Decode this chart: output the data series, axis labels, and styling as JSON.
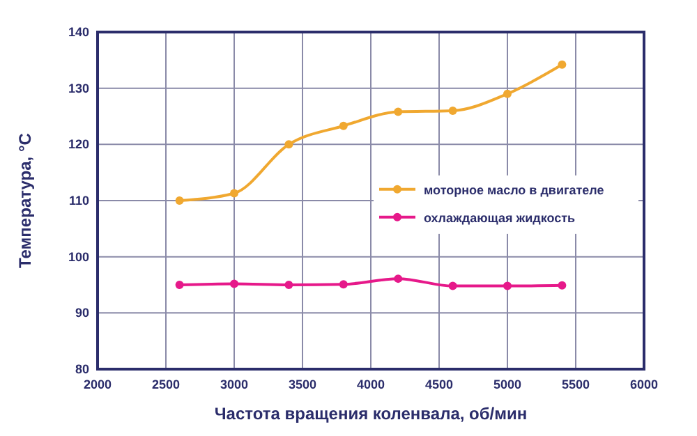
{
  "chart_data": {
    "type": "line",
    "xlabel": "Частота вращения коленвала, об/мин",
    "ylabel": "Температура, °C",
    "x": [
      2600,
      3000,
      3400,
      3800,
      4200,
      4600,
      5000,
      5400
    ],
    "series": [
      {
        "name": "моторное масло в двигателе",
        "color": "#f0a830",
        "values": [
          110,
          111.3,
          120,
          123.3,
          125.8,
          126,
          129,
          134.2
        ]
      },
      {
        "name": "охлаждающая жидкость",
        "color": "#e6198a",
        "values": [
          95,
          95.2,
          95,
          95.1,
          96.1,
          94.8,
          94.8,
          94.9
        ]
      }
    ],
    "xlim": [
      2000,
      6000
    ],
    "xticks": [
      2000,
      2500,
      3000,
      3500,
      4000,
      4500,
      5000,
      5500,
      6000
    ],
    "ylim": [
      80,
      140
    ],
    "yticks": [
      80,
      90,
      100,
      110,
      120,
      130,
      140
    ],
    "grid": true,
    "legend": "right",
    "marker": "circle",
    "line_style": "solid"
  }
}
